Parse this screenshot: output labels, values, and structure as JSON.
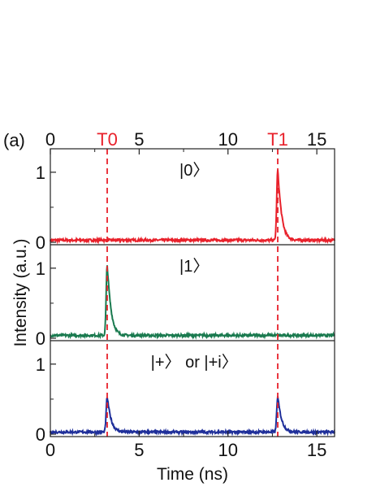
{
  "chart_data": {
    "type": "line",
    "panel_label": "(a)",
    "xlabel": "Time (ns)",
    "ylabel": "Intensity (a.u.)",
    "xlim": [
      0,
      16
    ],
    "ylim": [
      0,
      1.3
    ],
    "x_ticks": [
      "0",
      "5",
      "10",
      "15"
    ],
    "x_tick_values": [
      0,
      5,
      10,
      15
    ],
    "top_x_ticks": [
      "0",
      "5",
      "10",
      "15"
    ],
    "markers": [
      {
        "label": "T0",
        "x": 3.2,
        "color": "#e8212b"
      },
      {
        "label": "T1",
        "x": 12.8,
        "color": "#e8212b"
      }
    ],
    "panels": [
      {
        "label": "|0〉",
        "color": "#e8212b",
        "y_ticks": [
          "0",
          "1"
        ],
        "y_tick_values": [
          0,
          1
        ],
        "baseline": 0.03,
        "peaks": [
          {
            "x": 12.8,
            "height": 1.0
          }
        ]
      },
      {
        "label": "|1〉",
        "color": "#1a7a4f",
        "y_ticks": [
          "0",
          "1"
        ],
        "y_tick_values": [
          0,
          1
        ],
        "baseline": 0.04,
        "peaks": [
          {
            "x": 3.2,
            "height": 1.0
          }
        ]
      },
      {
        "label": "|+〉 or |+i〉",
        "color": "#1f2f9a",
        "y_ticks": [
          "0",
          "1"
        ],
        "y_tick_values": [
          0,
          1
        ],
        "baseline": 0.03,
        "peaks": [
          {
            "x": 3.2,
            "height": 0.5
          },
          {
            "x": 12.8,
            "height": 0.5
          }
        ]
      }
    ]
  }
}
